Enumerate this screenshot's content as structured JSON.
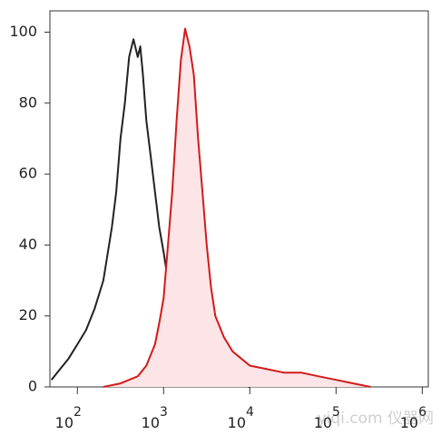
{
  "chart_data": {
    "type": "line",
    "log_x": true,
    "xlim": [
      48,
      1175000
    ],
    "ylim": [
      0,
      106
    ],
    "xticks": [
      {
        "value": 100,
        "label": "10",
        "exponent": "2"
      },
      {
        "value": 1000,
        "label": "10",
        "exponent": "3"
      },
      {
        "value": 10000,
        "label": "10",
        "exponent": "4"
      },
      {
        "value": 100000,
        "label": "10",
        "exponent": "5"
      },
      {
        "value": 1000000,
        "label": "10",
        "exponent": "6"
      }
    ],
    "yticks": [
      0,
      20,
      40,
      60,
      80,
      100
    ],
    "series": [
      {
        "color": "#222222",
        "fill": null,
        "x": [
          50,
          63,
          79,
          100,
          126,
          158,
          200,
          251,
          282,
          316,
          355,
          398,
          447,
          501,
          537,
          575,
          631,
          708,
          794,
          891,
          1000,
          1122,
          1259,
          1585,
          1995,
          2512,
          3162,
          3981,
          5012,
          6310,
          7943,
          10000
        ],
        "values": [
          2,
          5,
          8,
          12,
          16,
          22,
          30,
          45,
          55,
          70,
          80,
          93,
          98,
          93,
          96,
          88,
          75,
          65,
          55,
          45,
          38,
          30,
          22,
          15,
          10,
          7,
          5,
          3,
          2,
          1,
          0.5,
          0
        ]
      },
      {
        "color": "#d01b1b",
        "fill": "#fde4e6",
        "x": [
          200,
          316,
          501,
          631,
          794,
          891,
          1000,
          1122,
          1259,
          1413,
          1585,
          1778,
          1995,
          2239,
          2512,
          2818,
          3162,
          3548,
          3981,
          5012,
          6310,
          7943,
          10000,
          15849,
          25119,
          39811,
          63096,
          100000,
          158489,
          251189
        ],
        "values": [
          0,
          1,
          3,
          6,
          12,
          18,
          25,
          40,
          55,
          75,
          92,
          101,
          96,
          88,
          70,
          55,
          40,
          28,
          20,
          14,
          10,
          8,
          6,
          5,
          4,
          4,
          3,
          2,
          1,
          0
        ]
      }
    ],
    "watermark": "yiqi.com 仪器网"
  }
}
